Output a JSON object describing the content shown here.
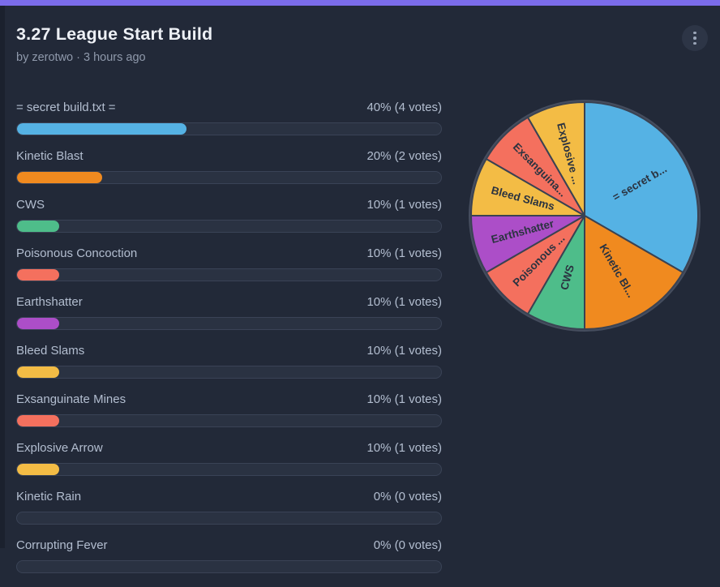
{
  "theme": {
    "background": "#222938",
    "left_edge": "#1b212e",
    "accent": "#7b6cea",
    "title_color": "#edf0f5",
    "muted_color": "#8f99ab",
    "option_text": "#b3bed0",
    "track": "#2a3242",
    "track_border": "#3a4356",
    "menu_button_bg": "#2d3546",
    "menu_dots": "#9aa5b8",
    "pie_label_color": "#2b3340",
    "pie_slice_stroke": "#3a4252",
    "pie_outer_ring": "#454d5e"
  },
  "header": {
    "title": "3.27 League Start Build",
    "byline": "by zerotwo · 3 hours ago"
  },
  "poll": {
    "options": [
      {
        "label": "= secret build.txt =",
        "result": "40% (4 votes)",
        "percent": 40,
        "color": "#55b2e4"
      },
      {
        "label": "Kinetic Blast",
        "result": "20% (2 votes)",
        "percent": 20,
        "color": "#f08a1f"
      },
      {
        "label": "CWS",
        "result": "10% (1 votes)",
        "percent": 10,
        "color": "#4ebd8a"
      },
      {
        "label": "Poisonous Concoction",
        "result": "10% (1 votes)",
        "percent": 10,
        "color": "#f4705e"
      },
      {
        "label": "Earthshatter",
        "result": "10% (1 votes)",
        "percent": 10,
        "color": "#ac4ec8"
      },
      {
        "label": "Bleed Slams",
        "result": "10% (1 votes)",
        "percent": 10,
        "color": "#f3bc45"
      },
      {
        "label": "Exsanguinate Mines",
        "result": "10% (1 votes)",
        "percent": 10,
        "color": "#f4705e"
      },
      {
        "label": "Explosive Arrow",
        "result": "10% (1 votes)",
        "percent": 10,
        "color": "#f3bc45"
      },
      {
        "label": "Kinetic Rain",
        "result": "0% (0 votes)",
        "percent": 0,
        "color": "#55b2e4"
      },
      {
        "label": "Corrupting Fever",
        "result": "0% (0 votes)",
        "percent": 0,
        "color": "#55b2e4"
      }
    ]
  },
  "chart_data": {
    "type": "pie",
    "title": "",
    "labels": [
      "= secret build.txt =",
      "Kinetic Blast",
      "CWS",
      "Poisonous Concoction",
      "Earthshatter",
      "Bleed Slams",
      "Exsanguinate Mines",
      "Explosive Arrow"
    ],
    "display_labels": [
      "= secret b...",
      "Kinetic Bl...",
      "CWS",
      "Poisonous ...",
      "Earthshatter",
      "Bleed Slams",
      "Exsanguina...",
      "Explosive ..."
    ],
    "values": [
      4,
      2,
      1,
      1,
      1,
      1,
      1,
      1
    ],
    "colors": [
      "#55b2e4",
      "#f08a1f",
      "#4ebd8a",
      "#f4705e",
      "#ac4ec8",
      "#f3bc45",
      "#f4705e",
      "#f3bc45"
    ],
    "start_angle_deg": 0,
    "direction": "clockwise",
    "legend_position": "none",
    "label_radius_px": 79,
    "radius_px": 140
  }
}
